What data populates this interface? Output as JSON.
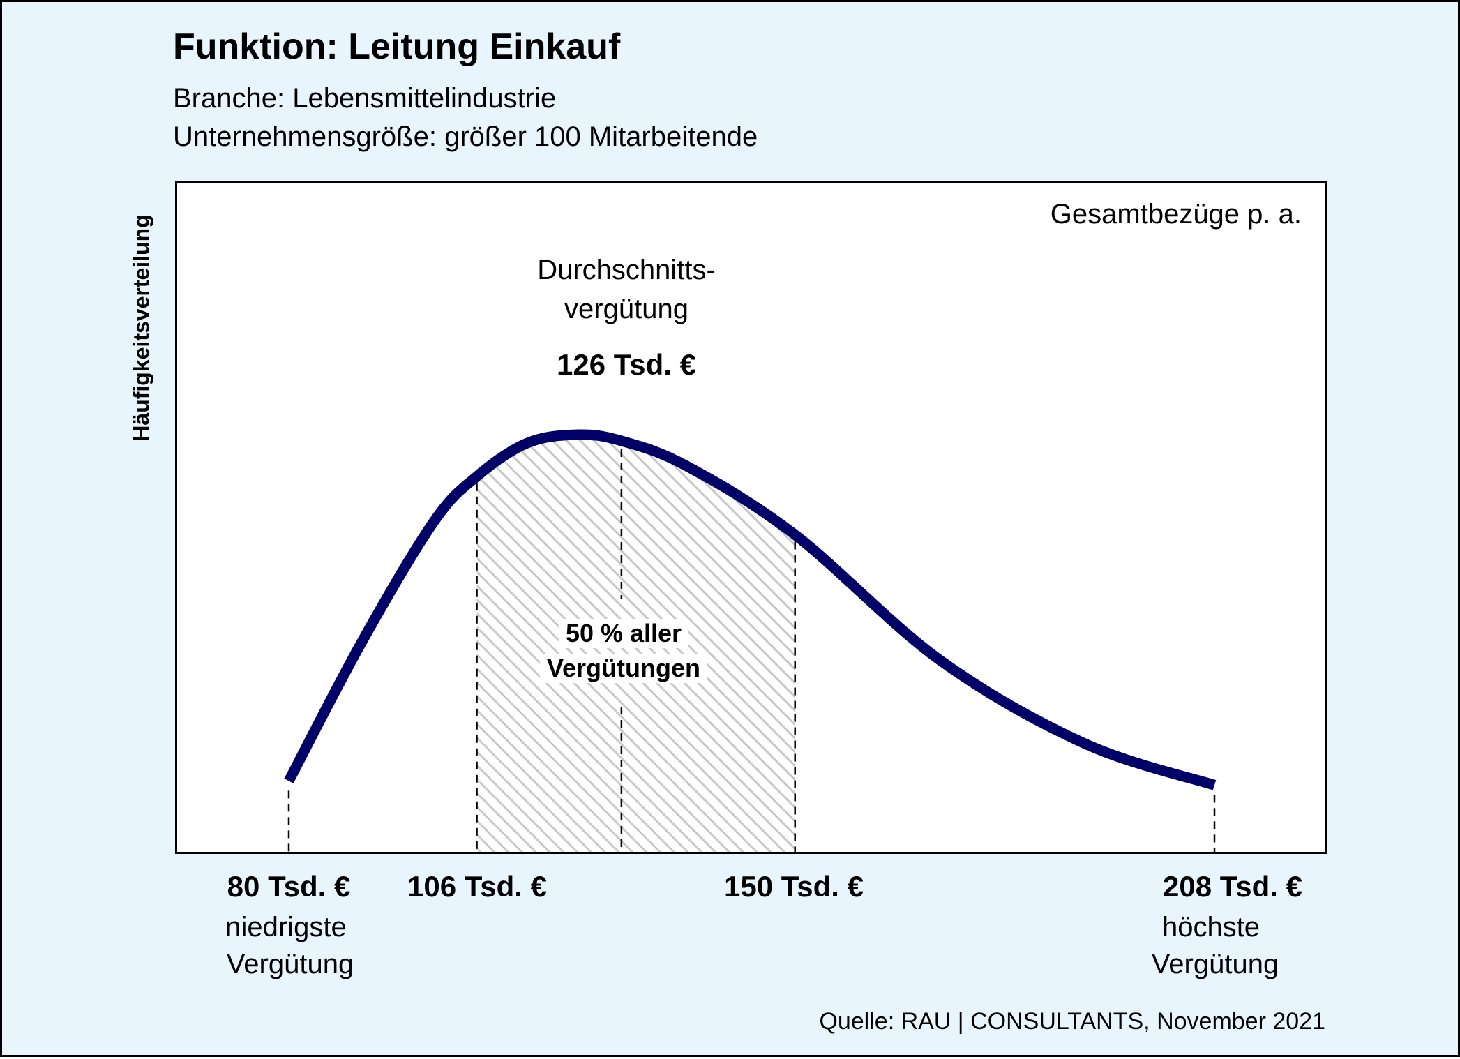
{
  "title": "Funktion: Leitung Einkauf",
  "subtitle_1": "Branche: Lebensmittelindustrie",
  "subtitle_2": "Unternehmensgröße: größer 100 Mitarbeitende",
  "y_axis_label": "Häufigkeitsverteilung",
  "plot_label": "Gesamtbezüge p. a.",
  "source": "Quelle: RAU | CONSULTANTS, November 2021",
  "colors": {
    "background": "#e8f5fd",
    "curve": "#000066",
    "hatch": "#c8c8c8",
    "plot_area": "#ffffff"
  },
  "chart_data": {
    "type": "area",
    "title": "Funktion: Leitung Einkauf",
    "ylabel": "Häufigkeitsverteilung",
    "xlabel": "Gesamtbezüge p. a.",
    "x_unit": "Tsd. €",
    "markers": {
      "min": {
        "value": 80,
        "label": "80 Tsd. €",
        "caption_1": "niedrigste",
        "caption_2": "Vergütung"
      },
      "q1": {
        "value": 106,
        "label": "106 Tsd. €"
      },
      "mean": {
        "value": 126,
        "label": "126 Tsd. €",
        "caption_1": "Durchschnitts-",
        "caption_2": "vergütung"
      },
      "q3": {
        "value": 150,
        "label": "150 Tsd. €"
      },
      "max": {
        "value": 208,
        "label": "208 Tsd. €",
        "caption_1": "höchste",
        "caption_2": "Vergütung"
      }
    },
    "shaded_range": [
      106,
      150
    ],
    "shaded_label_1": "50 % aller",
    "shaded_label_2": "Vergütungen",
    "curve": {
      "x": [
        80,
        90,
        100,
        106,
        113,
        120,
        126,
        135,
        150,
        170,
        190,
        208
      ],
      "y": [
        0.17,
        0.5,
        0.79,
        0.9,
        0.98,
        1.0,
        0.985,
        0.925,
        0.76,
        0.46,
        0.26,
        0.16
      ]
    }
  }
}
